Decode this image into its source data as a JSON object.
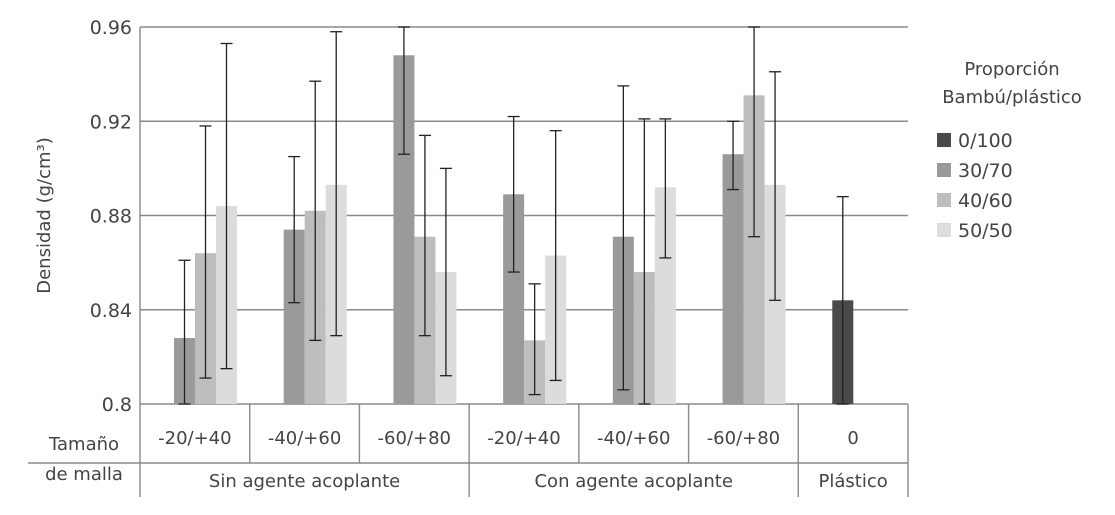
{
  "chart_data": {
    "type": "bar",
    "ylabel": "Densidad (g/cm³)",
    "ylim": [
      0.8,
      0.96
    ],
    "yticks": [
      "0.8",
      "0.84",
      "0.88",
      "0.92",
      "0.96"
    ],
    "grid": true,
    "legend_title_lines": [
      "Proporción",
      "Bambú/plástico"
    ],
    "legend_position": "right",
    "series": [
      {
        "name": "0/100",
        "color": "#4a4a4a"
      },
      {
        "name": "30/70",
        "color": "#9a9a9a"
      },
      {
        "name": "40/60",
        "color": "#bdbdbd"
      },
      {
        "name": "50/50",
        "color": "#dcdcdc"
      }
    ],
    "row_header": [
      "Tamaño",
      "de malla"
    ],
    "groups": [
      {
        "label": "Sin agente acoplante",
        "categories": [
          {
            "label": "-20/+40",
            "bars": [
              {
                "series": "30/70",
                "value": 0.828,
                "err_low": 0.8,
                "err_high": 0.861
              },
              {
                "series": "40/60",
                "value": 0.864,
                "err_low": 0.811,
                "err_high": 0.918
              },
              {
                "series": "50/50",
                "value": 0.884,
                "err_low": 0.815,
                "err_high": 0.953
              }
            ]
          },
          {
            "label": "-40/+60",
            "bars": [
              {
                "series": "30/70",
                "value": 0.874,
                "err_low": 0.843,
                "err_high": 0.905
              },
              {
                "series": "40/60",
                "value": 0.882,
                "err_low": 0.827,
                "err_high": 0.937
              },
              {
                "series": "50/50",
                "value": 0.893,
                "err_low": 0.829,
                "err_high": 0.958
              }
            ]
          },
          {
            "label": "-60/+80",
            "bars": [
              {
                "series": "30/70",
                "value": 0.948,
                "err_low": 0.906,
                "err_high": 0.96
              },
              {
                "series": "40/60",
                "value": 0.871,
                "err_low": 0.829,
                "err_high": 0.914
              },
              {
                "series": "50/50",
                "value": 0.856,
                "err_low": 0.812,
                "err_high": 0.9
              }
            ]
          }
        ]
      },
      {
        "label": "Con agente acoplante",
        "categories": [
          {
            "label": "-20/+40",
            "bars": [
              {
                "series": "30/70",
                "value": 0.889,
                "err_low": 0.856,
                "err_high": 0.922
              },
              {
                "series": "40/60",
                "value": 0.827,
                "err_low": 0.804,
                "err_high": 0.851
              },
              {
                "series": "50/50",
                "value": 0.863,
                "err_low": 0.81,
                "err_high": 0.916
              }
            ]
          },
          {
            "label": "-40/+60",
            "bars": [
              {
                "series": "30/70",
                "value": 0.871,
                "err_low": 0.806,
                "err_high": 0.935
              },
              {
                "series": "40/60",
                "value": 0.856,
                "err_low": 0.8,
                "err_high": 0.921
              },
              {
                "series": "50/50",
                "value": 0.892,
                "err_low": 0.862,
                "err_high": 0.921
              }
            ]
          },
          {
            "label": "-60/+80",
            "bars": [
              {
                "series": "30/70",
                "value": 0.906,
                "err_low": 0.891,
                "err_high": 0.92
              },
              {
                "series": "40/60",
                "value": 0.931,
                "err_low": 0.871,
                "err_high": 0.96
              },
              {
                "series": "50/50",
                "value": 0.893,
                "err_low": 0.844,
                "err_high": 0.941
              }
            ]
          }
        ]
      },
      {
        "label": "Plástico",
        "categories": [
          {
            "label": "0",
            "bars": [
              {
                "series": "0/100",
                "value": 0.844,
                "err_low": 0.8,
                "err_high": 0.888
              }
            ]
          }
        ]
      }
    ]
  }
}
